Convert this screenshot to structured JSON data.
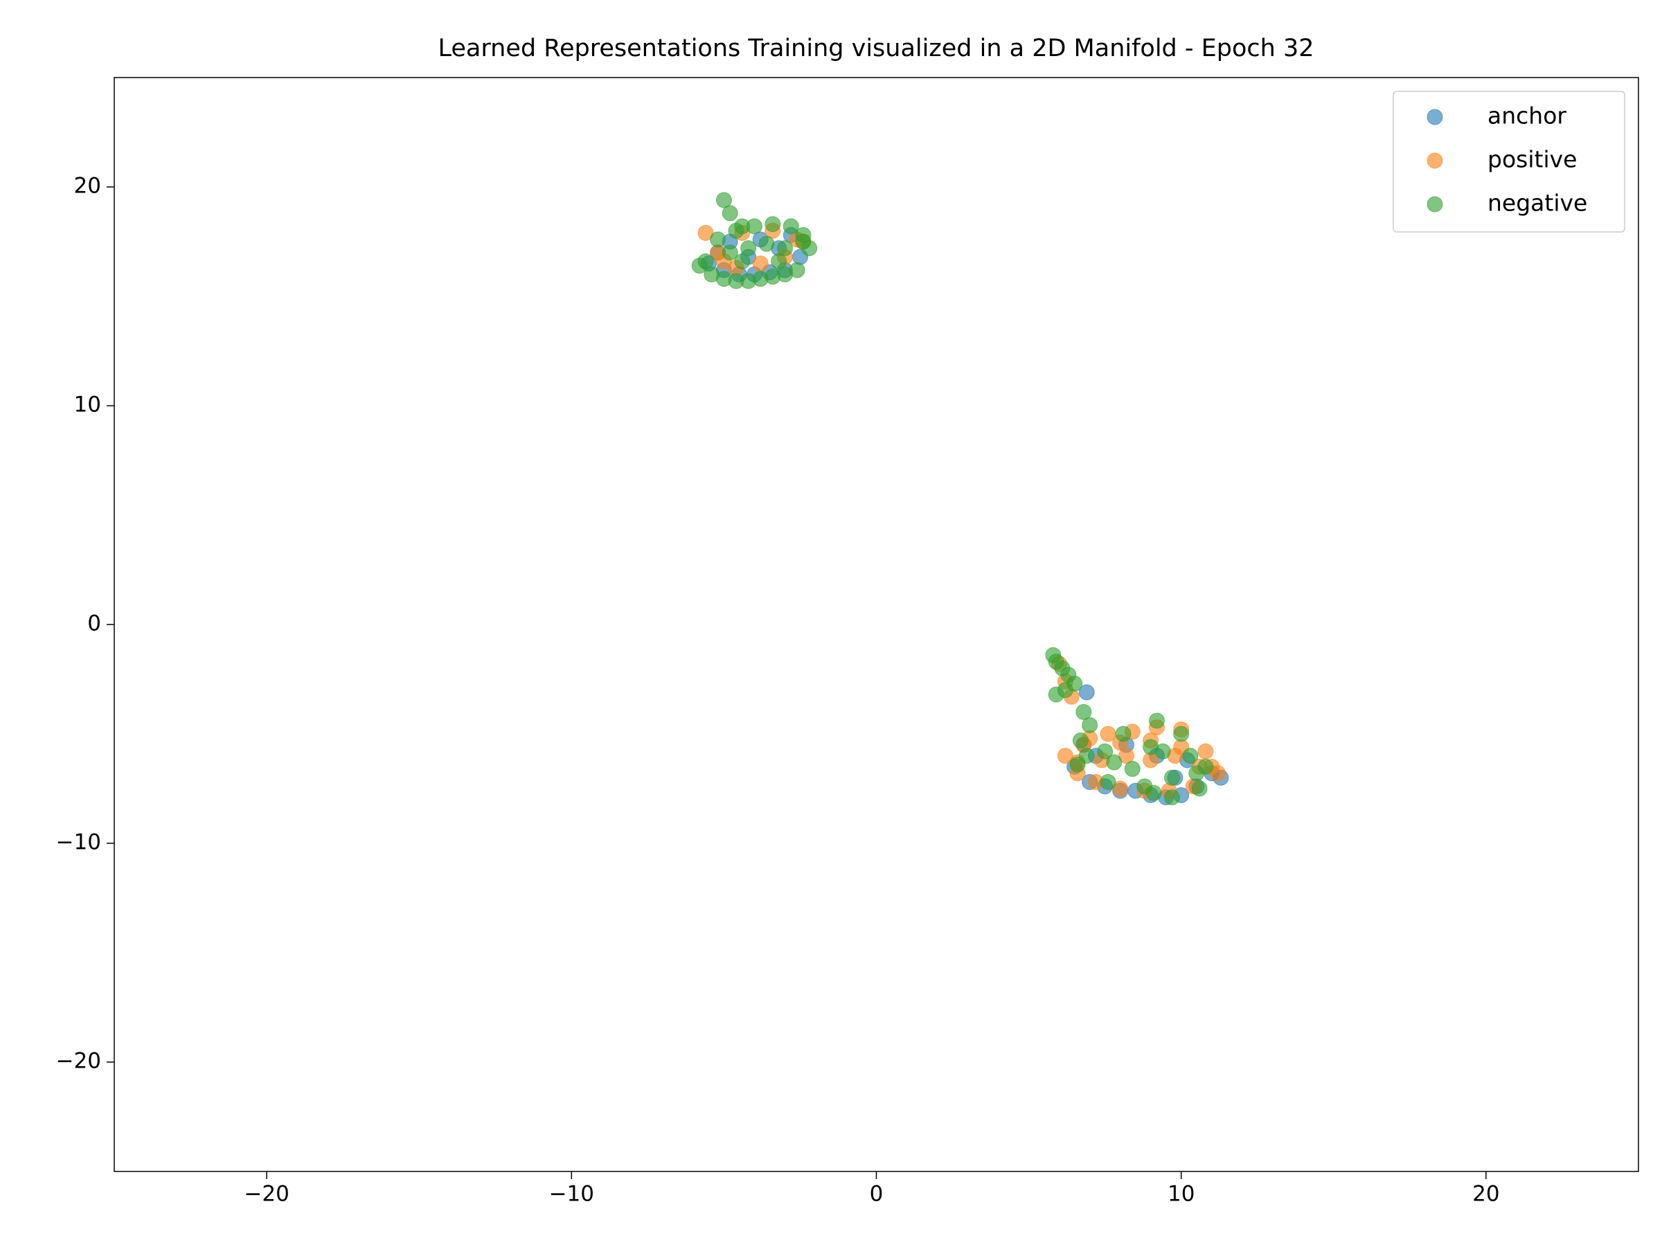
{
  "chart_data": {
    "type": "scatter",
    "title": "Learned Representations Training visualized in a 2D Manifold - Epoch 32",
    "xlim": [
      -25,
      25
    ],
    "ylim": [
      -25,
      25
    ],
    "xticks": [
      {
        "value": -20,
        "label": "−20"
      },
      {
        "value": -10,
        "label": "−10"
      },
      0,
      10,
      20
    ],
    "yticks": [
      {
        "value": -20,
        "label": "−20"
      },
      {
        "value": -10,
        "label": "−10"
      },
      0,
      10,
      20
    ],
    "legend": "upper right",
    "alpha": 0.6,
    "series": [
      {
        "name": "anchor",
        "color": "#1f77b4",
        "x": [
          -5.5,
          -5,
          -4.5,
          -4,
          -3.5,
          -3,
          -2.5,
          -4.8,
          -3.8,
          -2.8,
          -5.2,
          -4.2,
          -3.2,
          6.5,
          7,
          7.5,
          8,
          8.5,
          9,
          9.5,
          10,
          10.5,
          11,
          11.3,
          7.2,
          8.2,
          9.2,
          10.2,
          6.8,
          9.8,
          6.9
        ],
        "y": [
          16.5,
          16.2,
          16,
          16,
          16.1,
          16.2,
          16.8,
          17.5,
          17.6,
          17.8,
          17,
          16.8,
          17.2,
          -6.5,
          -7.2,
          -7.4,
          -7.6,
          -7.6,
          -7.8,
          -7.9,
          -7.8,
          -7.4,
          -6.8,
          -7,
          -6,
          -5.5,
          -6,
          -6.2,
          -5.5,
          -7,
          -3.1
        ]
      },
      {
        "name": "positive",
        "color": "#ff7f0e",
        "x": [
          -5.6,
          -5.2,
          -4.6,
          -3.8,
          -3,
          -2.4,
          -4.4,
          -3.4,
          -2.6,
          -5,
          6.2,
          6.6,
          6.8,
          7.2,
          7.6,
          8,
          8.4,
          8.8,
          9.2,
          9.6,
          10,
          10.4,
          10.8,
          11.2,
          6.6,
          7.4,
          8.2,
          9,
          9.8,
          10.6,
          7,
          8,
          9,
          10,
          11,
          6,
          6.2,
          6.4
        ],
        "y": [
          17.9,
          17,
          16.3,
          16.5,
          16.8,
          17.5,
          17.9,
          18,
          17.6,
          16.6,
          -6,
          -6.8,
          -5.5,
          -7.2,
          -5,
          -7.5,
          -4.9,
          -7.6,
          -4.7,
          -7.6,
          -4.8,
          -7.4,
          -5.8,
          -6.8,
          -6.3,
          -6.2,
          -6,
          -6.2,
          -6,
          -6.5,
          -5.2,
          -5.4,
          -5.3,
          -5.6,
          -6.5,
          -1.8,
          -2.6,
          -3.3
        ]
      },
      {
        "name": "negative",
        "color": "#2ca02c",
        "x": [
          -5,
          -4.8,
          -4.4,
          -5.8,
          -5.4,
          -5,
          -4.6,
          -4.2,
          -3.8,
          -3.4,
          -3,
          -2.6,
          -2.2,
          -5.2,
          -4.6,
          -4,
          -3.4,
          -2.8,
          -2.4,
          -4.8,
          -4.2,
          -3.6,
          -3,
          -2.4,
          -5.6,
          -4.4,
          -3.2,
          5.8,
          5.9,
          6.1,
          6.3,
          6.5,
          6.2,
          5.9,
          6.8,
          7,
          6.7,
          6.9,
          7.5,
          7.8,
          8.1,
          8.4,
          9,
          9.2,
          9.4,
          9.7,
          10,
          10.3,
          10.5,
          10.8,
          9.1,
          9.7,
          7.6,
          8.8,
          10.6,
          6.6
        ],
        "y": [
          19.4,
          18.8,
          18.2,
          16.4,
          16,
          15.8,
          15.7,
          15.7,
          15.8,
          15.9,
          16,
          16.2,
          17.2,
          17.6,
          18,
          18.2,
          18.3,
          18.2,
          17.8,
          17,
          17.2,
          17.4,
          17.2,
          17.5,
          16.6,
          16.6,
          16.6,
          -1.4,
          -1.7,
          -2,
          -2.3,
          -2.7,
          -3,
          -3.2,
          -4,
          -4.6,
          -5.3,
          -6,
          -5.8,
          -6.3,
          -5,
          -6.6,
          -5.6,
          -4.4,
          -5.8,
          -7,
          -5,
          -6,
          -6.8,
          -6.5,
          -7.7,
          -7.9,
          -7.2,
          -7.4,
          -7.5,
          -6.4
        ]
      }
    ]
  }
}
